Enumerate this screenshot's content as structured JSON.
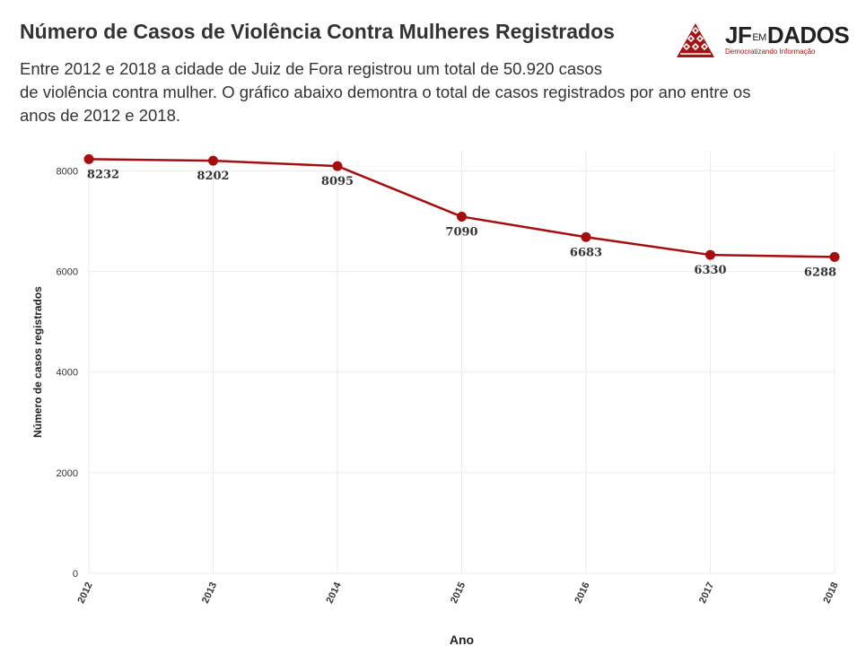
{
  "header": {
    "title": "Número de Casos de Violência Contra Mulheres Registrados",
    "subtitle_lines": [
      "Entre 2012 e 2018 a cidade de Juiz de Fora registrou um total de 50.920 casos",
      "de violência contra mulher. O gráfico abaixo demontra o total de casos registrados por ano entre os",
      "anos de 2012 e 2018."
    ]
  },
  "logo": {
    "brand_left": "JF",
    "brand_mid": "EM",
    "brand_right": "DADOS",
    "tagline": "Democratizando Informação",
    "color": "#a31515"
  },
  "chart_data": {
    "type": "line",
    "x": [
      "2012",
      "2013",
      "2014",
      "2015",
      "2016",
      "2017",
      "2018"
    ],
    "series": [
      {
        "values": [
          8232,
          8202,
          8095,
          7090,
          6683,
          6330,
          6288
        ],
        "color": "#a80d0d"
      }
    ],
    "data_labels": [
      "8232",
      "8202",
      "8095",
      "7090",
      "6683",
      "6330",
      "6288"
    ],
    "xlabel": "Ano",
    "ylabel": "Número de casos registrados",
    "ylim": [
      0,
      8400
    ],
    "yticks": [
      0,
      2000,
      4000,
      6000,
      8000
    ],
    "grid": true,
    "legend": "none"
  }
}
